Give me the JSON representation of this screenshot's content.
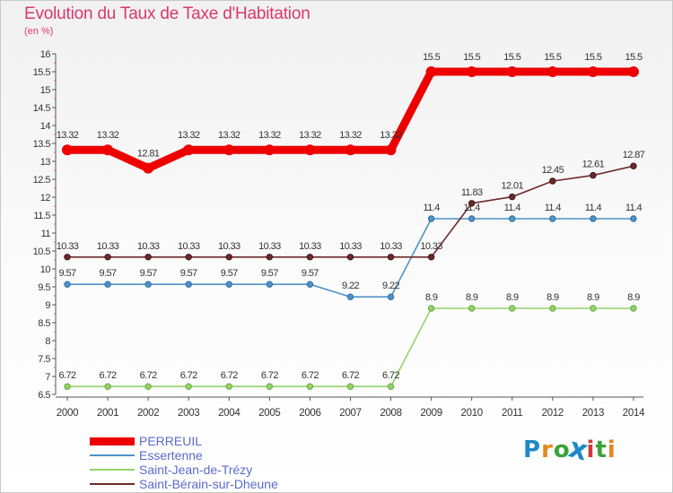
{
  "header": {
    "title": "Evolution du Taux de Taxe d'Habitation",
    "unit": "(en %)"
  },
  "logo": {
    "text": "Proxiti",
    "letters": [
      "P",
      "r",
      "o",
      "x",
      "i",
      "t",
      "i"
    ],
    "colors": [
      "#1e88c8",
      "#e08a1e",
      "#3aa23a",
      "#1e88c8",
      "#d03a3a",
      "#3aa23a",
      "#e08a1e"
    ]
  },
  "chart_data": {
    "type": "line",
    "x": [
      "2000",
      "2001",
      "2002",
      "2003",
      "2004",
      "2005",
      "2006",
      "2007",
      "2008",
      "2009",
      "2010",
      "2011",
      "2012",
      "2013",
      "2014"
    ],
    "ylim": [
      6.5,
      16
    ],
    "yticks": [
      "6.5",
      "7",
      "7.5",
      "8",
      "8.5",
      "9",
      "9.5",
      "10",
      "10.5",
      "11",
      "11.5",
      "12",
      "12.5",
      "13",
      "13.5",
      "14",
      "14.5",
      "15",
      "15.5",
      "16"
    ],
    "grid": false,
    "legend_position": "bottom-left",
    "series": [
      {
        "name": "PERREUIL",
        "color": "#ee0000",
        "values": [
          13.32,
          13.32,
          12.81,
          13.32,
          13.32,
          13.32,
          13.32,
          13.32,
          13.32,
          15.5,
          15.5,
          15.5,
          15.5,
          15.5,
          15.5
        ],
        "labels": [
          "13.32",
          "13.32",
          "12.81",
          "13.32",
          "13.32",
          "13.32",
          "13.32",
          "13.32",
          "13.32",
          "15.5",
          "15.5",
          "15.5",
          "15.5",
          "15.5",
          "15.5"
        ]
      },
      {
        "name": "Essertenne",
        "color": "#4f93c8",
        "values": [
          9.57,
          9.57,
          9.57,
          9.57,
          9.57,
          9.57,
          9.57,
          9.22,
          9.22,
          11.4,
          11.4,
          11.4,
          11.4,
          11.4,
          11.4
        ],
        "labels": [
          "9.57",
          "9.57",
          "9.57",
          "9.57",
          "9.57",
          "9.57",
          "9.57",
          "9.22",
          "9.22",
          "11.4",
          "11.4",
          "11.4",
          "11.4",
          "11.4",
          "11.4"
        ]
      },
      {
        "name": "Saint-Jean-de-Trézy",
        "color": "#95d36a",
        "values": [
          6.72,
          6.72,
          6.72,
          6.72,
          6.72,
          6.72,
          6.72,
          6.72,
          6.72,
          8.9,
          8.9,
          8.9,
          8.9,
          8.9,
          8.9
        ],
        "labels": [
          "6.72",
          "6.72",
          "6.72",
          "6.72",
          "6.72",
          "6.72",
          "6.72",
          "6.72",
          "6.72",
          "8.9",
          "8.9",
          "8.9",
          "8.9",
          "8.9",
          "8.9"
        ]
      },
      {
        "name": "Saint-Bérain-sur-Dheune",
        "color": "#6e2a2a",
        "values": [
          10.33,
          10.33,
          10.33,
          10.33,
          10.33,
          10.33,
          10.33,
          10.33,
          10.33,
          10.33,
          11.83,
          12.01,
          12.45,
          12.61,
          12.87
        ],
        "labels": [
          "10.33",
          "10.33",
          "10.33",
          "10.33",
          "10.33",
          "10.33",
          "10.33",
          "10.33",
          "10.33",
          "10.33",
          "11.83",
          "12.01",
          "12.45",
          "12.61",
          "12.87"
        ]
      }
    ]
  }
}
